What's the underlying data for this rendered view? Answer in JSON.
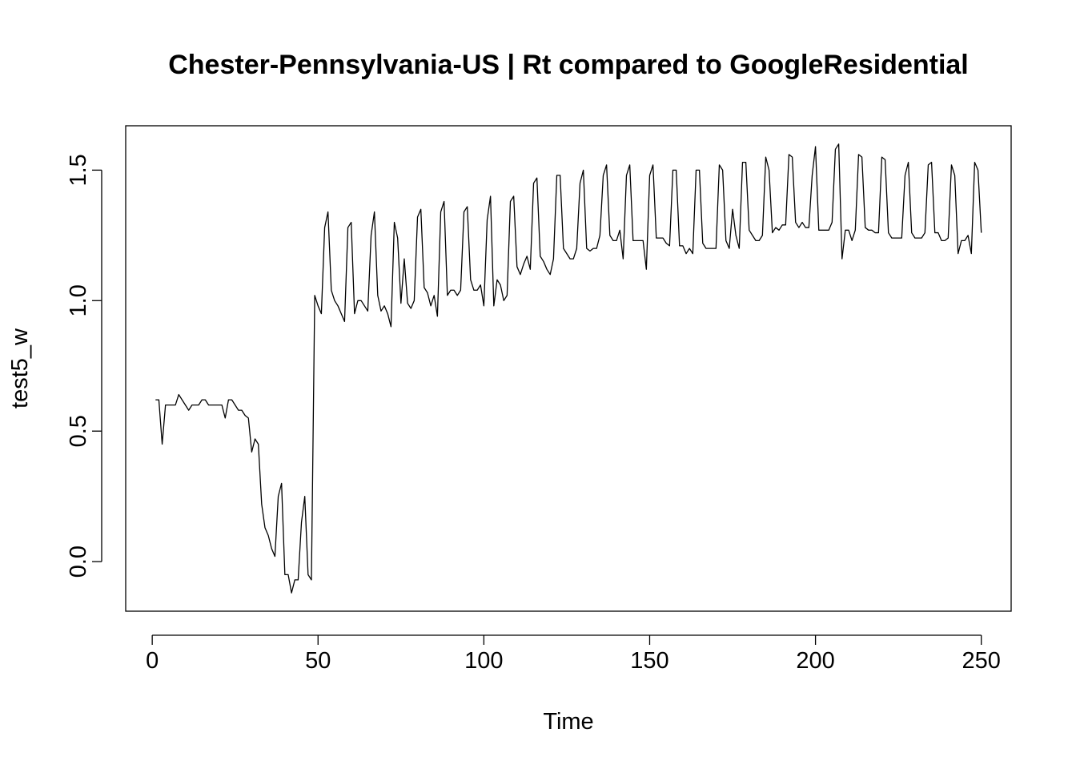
{
  "chart_data": {
    "type": "line",
    "title": "Chester-Pennsylvania-US | Rt compared to GoogleResidential",
    "xlabel": "Time",
    "ylabel": "test5_w",
    "xlim": [
      -8,
      259
    ],
    "ylim": [
      -0.19,
      1.67
    ],
    "xticks": [
      0,
      50,
      100,
      150,
      200,
      250
    ],
    "xtick_labels": [
      "0",
      "50",
      "100",
      "150",
      "200",
      "250"
    ],
    "yticks": [
      0.0,
      0.5,
      1.0,
      1.5
    ],
    "ytick_labels": [
      "0.0",
      "0.5",
      "1.0",
      "1.5"
    ],
    "grid": false,
    "series": [
      {
        "color": "#000000",
        "x_start": 1,
        "values": [
          0.62,
          0.62,
          0.45,
          0.6,
          0.6,
          0.6,
          0.6,
          0.64,
          0.62,
          0.6,
          0.58,
          0.6,
          0.6,
          0.6,
          0.62,
          0.62,
          0.6,
          0.6,
          0.6,
          0.6,
          0.6,
          0.55,
          0.62,
          0.62,
          0.6,
          0.58,
          0.58,
          0.56,
          0.55,
          0.42,
          0.47,
          0.45,
          0.22,
          0.13,
          0.1,
          0.05,
          0.02,
          0.25,
          0.3,
          -0.05,
          -0.05,
          -0.12,
          -0.07,
          -0.07,
          0.15,
          0.25,
          -0.05,
          -0.07,
          1.02,
          0.98,
          0.95,
          1.28,
          1.34,
          1.04,
          1.0,
          0.98,
          0.95,
          0.92,
          1.28,
          1.3,
          0.95,
          1.0,
          1.0,
          0.98,
          0.96,
          1.25,
          1.34,
          1.02,
          0.96,
          0.98,
          0.95,
          0.9,
          1.3,
          1.24,
          0.99,
          1.16,
          0.99,
          0.97,
          1.0,
          1.32,
          1.35,
          1.05,
          1.03,
          0.98,
          1.02,
          0.94,
          1.34,
          1.38,
          1.02,
          1.04,
          1.04,
          1.02,
          1.04,
          1.34,
          1.36,
          1.08,
          1.04,
          1.04,
          1.06,
          0.98,
          1.31,
          1.4,
          0.98,
          1.08,
          1.06,
          1.0,
          1.02,
          1.38,
          1.4,
          1.13,
          1.1,
          1.14,
          1.17,
          1.12,
          1.45,
          1.47,
          1.17,
          1.15,
          1.12,
          1.1,
          1.16,
          1.48,
          1.48,
          1.2,
          1.18,
          1.16,
          1.16,
          1.2,
          1.45,
          1.5,
          1.2,
          1.19,
          1.2,
          1.2,
          1.25,
          1.48,
          1.52,
          1.25,
          1.23,
          1.23,
          1.27,
          1.16,
          1.48,
          1.52,
          1.23,
          1.23,
          1.23,
          1.23,
          1.12,
          1.48,
          1.52,
          1.24,
          1.24,
          1.24,
          1.22,
          1.21,
          1.5,
          1.5,
          1.21,
          1.21,
          1.18,
          1.2,
          1.18,
          1.5,
          1.5,
          1.22,
          1.2,
          1.2,
          1.2,
          1.2,
          1.52,
          1.5,
          1.23,
          1.2,
          1.35,
          1.25,
          1.2,
          1.53,
          1.53,
          1.27,
          1.25,
          1.23,
          1.23,
          1.25,
          1.55,
          1.5,
          1.26,
          1.28,
          1.27,
          1.29,
          1.29,
          1.56,
          1.55,
          1.3,
          1.28,
          1.3,
          1.28,
          1.28,
          1.48,
          1.59,
          1.27,
          1.27,
          1.27,
          1.27,
          1.3,
          1.58,
          1.6,
          1.16,
          1.27,
          1.27,
          1.23,
          1.27,
          1.56,
          1.55,
          1.28,
          1.27,
          1.27,
          1.26,
          1.26,
          1.55,
          1.54,
          1.26,
          1.24,
          1.24,
          1.24,
          1.24,
          1.48,
          1.53,
          1.26,
          1.24,
          1.24,
          1.24,
          1.26,
          1.52,
          1.53,
          1.26,
          1.26,
          1.23,
          1.23,
          1.24,
          1.52,
          1.48,
          1.18,
          1.23,
          1.23,
          1.25,
          1.18,
          1.53,
          1.5,
          1.26
        ]
      }
    ]
  }
}
